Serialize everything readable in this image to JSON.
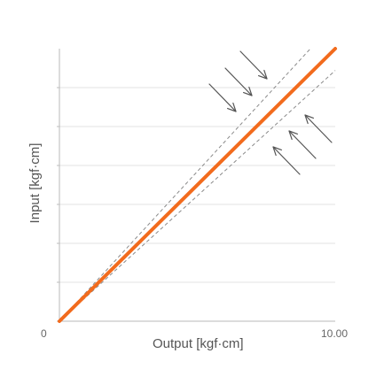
{
  "chart_data": {
    "type": "line",
    "title": "",
    "xlabel": "Output [kgf·cm]",
    "ylabel": "Input [kgf·cm]",
    "x_ticks": [
      "0",
      "10.00"
    ],
    "xlim": [
      0,
      10.0
    ],
    "ylim": [
      0,
      10.0
    ],
    "grid": true,
    "series": [
      {
        "values": [
          {
            "x": 0,
            "y": 0
          },
          {
            "x": 10.0,
            "y": 10.0
          }
        ],
        "color": "#f26b1d"
      }
    ],
    "reference_lines": [
      {
        "values": [
          {
            "x": 0,
            "y": 0
          },
          {
            "x": 9.1,
            "y": 10.0
          }
        ],
        "color": "#8a8a8a",
        "style": "dashed"
      },
      {
        "values": [
          {
            "x": 0,
            "y": 0
          },
          {
            "x": 10.0,
            "y": 9.2
          }
        ],
        "color": "#8a8a8a",
        "style": "dashed"
      }
    ],
    "annotations": [
      {
        "type": "arrow-group",
        "direction": "down-right",
        "count": 3
      },
      {
        "type": "arrow-group",
        "direction": "up-left",
        "count": 3
      }
    ]
  }
}
